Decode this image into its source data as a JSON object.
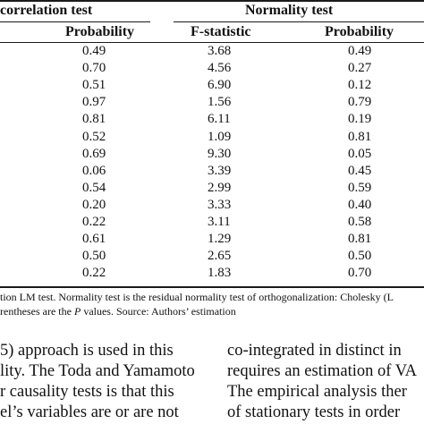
{
  "table": {
    "header_group_left": "correlation test",
    "header_group_right": "Normality test",
    "col_headers": [
      "Probability",
      "F-statistic",
      "Probability"
    ],
    "rows": [
      [
        "0.49",
        "3.68",
        "0.49"
      ],
      [
        "0.70",
        "4.56",
        "0.27"
      ],
      [
        "0.51",
        "6.90",
        "0.12"
      ],
      [
        "0.97",
        "1.56",
        "0.79"
      ],
      [
        "0.81",
        "6.11",
        "0.19"
      ],
      [
        "0.52",
        "1.09",
        "0.81"
      ],
      [
        "0.69",
        "9.30",
        "0.05"
      ],
      [
        "0.06",
        "3.39",
        "0.45"
      ],
      [
        "0.54",
        "2.99",
        "0.59"
      ],
      [
        "0.20",
        "3.33",
        "0.40"
      ],
      [
        "0.22",
        "3.11",
        "0.58"
      ],
      [
        "0.61",
        "1.29",
        "0.81"
      ],
      [
        "0.50",
        "2.65",
        "0.50"
      ],
      [
        "0.22",
        "1.83",
        "0.70"
      ]
    ]
  },
  "notes": {
    "line1": "tion LM test. Normality test is the residual normality test of orthogonalization: Cholesky (L",
    "line2_a": "rentheses are the ",
    "line2_p": "P",
    "line2_b": " values. Source: Authors’ estimation"
  },
  "body": {
    "left": [
      "5) approach is used in this",
      "lity. The Toda and Yamamoto",
      "r causality tests is that this",
      "el’s variables are or are not"
    ],
    "right": [
      "co-integrated in distinct in",
      "requires an estimation of VA",
      "The empirical analysis ther",
      "of stationary tests in order"
    ]
  }
}
